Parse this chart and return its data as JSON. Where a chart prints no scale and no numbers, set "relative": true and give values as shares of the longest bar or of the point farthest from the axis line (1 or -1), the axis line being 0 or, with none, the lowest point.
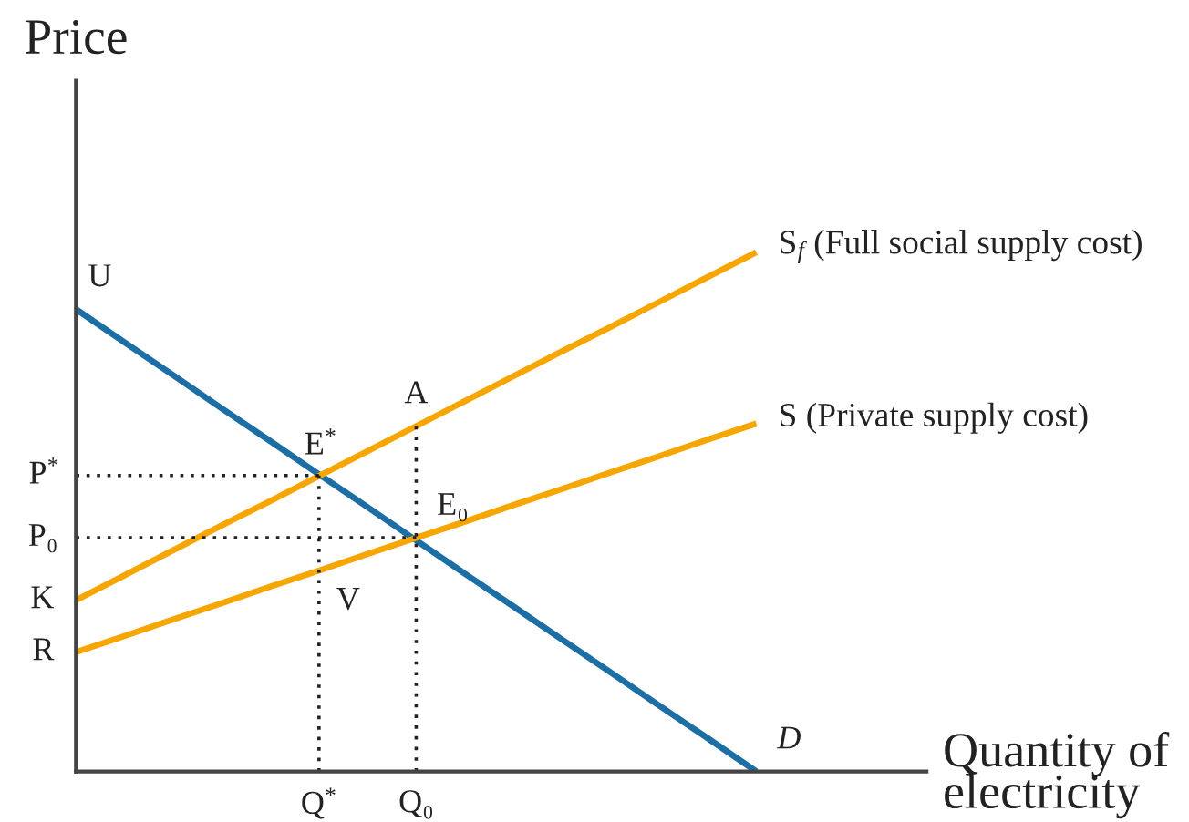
{
  "chart_data": {
    "type": "line",
    "relative": true,
    "xlabel": "Quantity of\nelectricity",
    "ylabel": "Price",
    "categories": [
      null,
      null,
      null,
      null,
      null,
      "Q$^{*}$",
      null,
      "Q₀",
      null,
      null,
      null,
      null,
      null,
      null,
      null,
      null,
      null,
      null
    ],
    "series": [
      {
        "name": "D",
        "color": "#1c6ea4",
        "values": [
          0.89,
          0.826,
          0.763,
          0.699,
          0.636,
          0.572,
          0.509,
          0.445,
          0.381,
          0.318,
          0.254,
          0.191,
          0.127,
          0.064,
          0,
          null,
          null,
          null
        ]
      },
      {
        "name": "S$_{f}$ (Full social supply cost)",
        "color": "#f7a600",
        "values": [
          0.33,
          0.378,
          0.426,
          0.474,
          0.521,
          0.569,
          0.617,
          0.665,
          0.713,
          0.761,
          0.809,
          0.856,
          0.904,
          0.952,
          1,
          null,
          null,
          null
        ]
      },
      {
        "name": "S (Private supply cost)",
        "color": "#f7a600",
        "values": [
          0.23,
          0.261,
          0.293,
          0.324,
          0.356,
          0.387,
          0.419,
          0.45,
          0.481,
          0.513,
          0.544,
          0.576,
          0.607,
          0.639,
          0.67,
          null,
          null,
          null
        ]
      },
      {
        "color": "#222222",
        "line_style": "dotted",
        "values": [
          0.57,
          0.57,
          0.57,
          0.57,
          0.57,
          0.57,
          null,
          null,
          null,
          null,
          null,
          null,
          null,
          null,
          null,
          null,
          null,
          null
        ]
      },
      {
        "color": "#222222",
        "line_style": "dotted",
        "values": [
          0.45,
          0.45,
          0.45,
          0.45,
          0.45,
          0.45,
          0.45,
          0.45,
          null,
          null,
          null,
          null,
          null,
          null,
          null,
          null,
          null,
          null
        ]
      },
      {
        "color": "#222222",
        "line_style": "dotted",
        "x": [
          "Q$^{*}$",
          "Q$^{*}$"
        ],
        "values": [
          0,
          0.57
        ]
      },
      {
        "color": "#222222",
        "line_style": "dotted",
        "x": [
          "Q₀",
          "Q₀"
        ],
        "values": [
          0,
          0.665
        ]
      }
    ],
    "annotations": [
      "U",
      {
        "text": "A",
        "x": "Q₀",
        "y": 0.665
      },
      {
        "text": "E$^{*}$",
        "x": "Q$^{*}$",
        "y": 0.57
      },
      {
        "text": "E₀",
        "x": "Q₀",
        "y": 0.45
      },
      {
        "text": "V",
        "x": "Q$^{*}$",
        "y": 0.387
      },
      "P$^{*}$",
      "P₀",
      "K",
      "R"
    ]
  }
}
